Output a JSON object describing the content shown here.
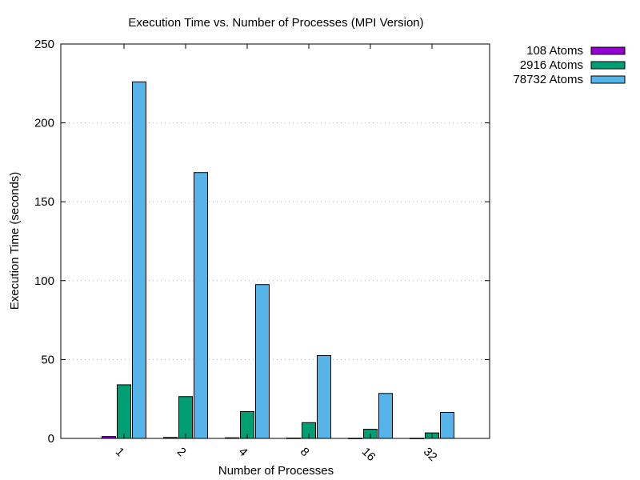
{
  "chart_data": {
    "type": "bar",
    "title": "Execution Time vs. Number of Processes (MPI Version)",
    "xlabel": "Number of Processes",
    "ylabel": "Execution Time (seconds)",
    "categories": [
      "1",
      "2",
      "4",
      "8",
      "16",
      "32"
    ],
    "ylim": [
      0,
      250
    ],
    "yticks": [
      0,
      50,
      100,
      150,
      200,
      250
    ],
    "grid": "horizontal-dotted",
    "legend_position": "outside-top-right",
    "series": [
      {
        "name": "108 Atoms",
        "color": "#9400d3",
        "values": [
          1.2,
          0.6,
          0.4,
          0.2,
          0.1,
          0.1
        ]
      },
      {
        "name": "2916 Atoms",
        "color": "#009e73",
        "values": [
          34,
          26.5,
          17,
          10,
          5.8,
          3.5
        ]
      },
      {
        "name": "78732 Atoms",
        "color": "#56b4e9",
        "values": [
          226,
          168.5,
          97.5,
          52.5,
          28.5,
          16.5
        ]
      }
    ]
  }
}
